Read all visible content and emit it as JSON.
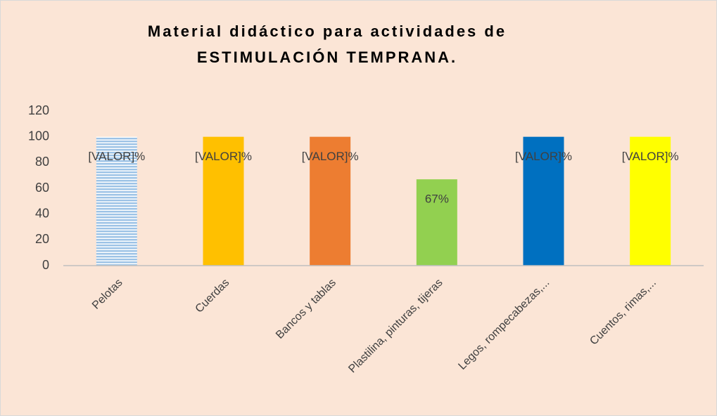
{
  "chart_data": {
    "type": "bar",
    "title": [
      "Material didáctico para actividades de",
      "ESTIMULACIÓN TEMPRANA."
    ],
    "categories": [
      "Pelotas",
      "Cuerdas",
      "Bancos y tablas",
      "Plastilina, pinturas, tijeras",
      "Legos, rompecabezas,...",
      "Cuentos, rimas,..."
    ],
    "values": [
      100,
      100,
      100,
      67,
      100,
      100
    ],
    "value_labels": [
      "[VALOR]%",
      "[VALOR]%",
      "[VALOR]%",
      "67%",
      "[VALOR]%",
      "[VALOR]%"
    ],
    "colors": [
      "#9dc3e6",
      "#ffc000",
      "#ed7d31",
      "#92d050",
      "#0070c0",
      "#ffff00"
    ],
    "ylim": [
      0,
      120
    ],
    "yticks": [
      0,
      20,
      40,
      60,
      80,
      100,
      120
    ],
    "grid": false
  }
}
